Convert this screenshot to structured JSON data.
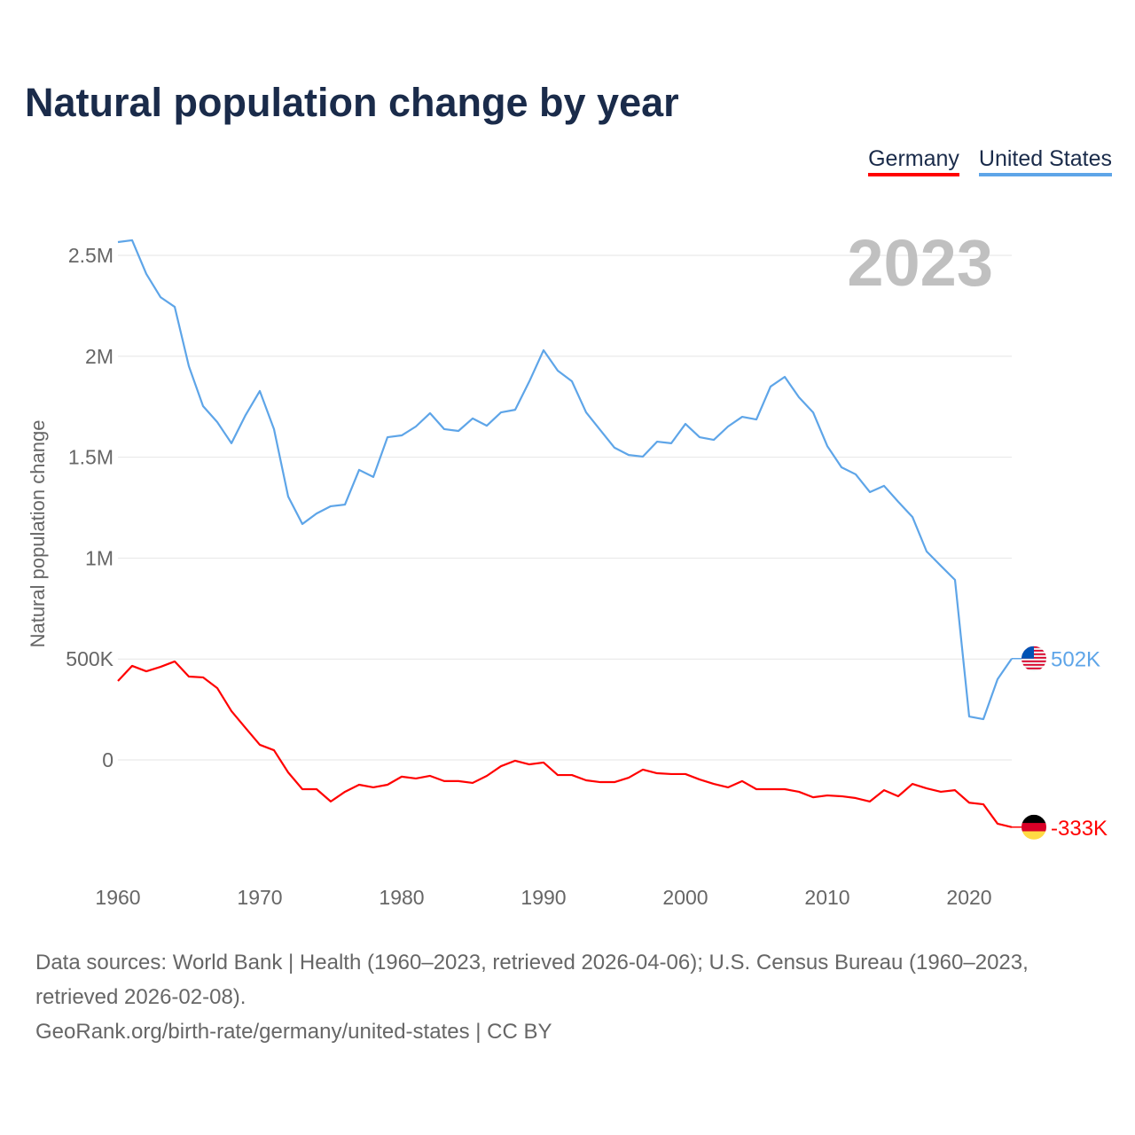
{
  "title": "Natural population change by year",
  "legend": {
    "germany": "Germany",
    "us": "United States"
  },
  "year_watermark": "2023",
  "footer": {
    "sources": "Data sources: World Bank | Health (1960–2023, retrieved 2026-04-06); U.S. Census Bureau (1960–2023, retrieved 2026-02-08).",
    "link": "GeoRank.org/birth-rate/germany/united-states | CC BY"
  },
  "chart_data": {
    "type": "line",
    "title": "Natural population change by year",
    "xlabel": "",
    "ylabel": "Natural population change",
    "xlim": [
      1960,
      2023
    ],
    "ylim": [
      -0.5,
      2.6
    ],
    "y_unit": "millions",
    "y_ticks": [
      {
        "v": 0,
        "label": "0"
      },
      {
        "v": 0.5,
        "label": "500K"
      },
      {
        "v": 1,
        "label": "1M"
      },
      {
        "v": 1.5,
        "label": "1.5M"
      },
      {
        "v": 2,
        "label": "2M"
      },
      {
        "v": 2.5,
        "label": "2.5M"
      }
    ],
    "x_ticks": [
      {
        "v": 1960,
        "label": "1960"
      },
      {
        "v": 1970,
        "label": "1970"
      },
      {
        "v": 1980,
        "label": "1980"
      },
      {
        "v": 1990,
        "label": "1990"
      },
      {
        "v": 2000,
        "label": "2000"
      },
      {
        "v": 2010,
        "label": "2010"
      },
      {
        "v": 2020,
        "label": "2020"
      }
    ],
    "grid": true,
    "legend_position": "top-right",
    "x_start": 1960,
    "series": [
      {
        "name": "United States",
        "color": "#5ea5e8",
        "flag": "us-flag-icon",
        "end_label": "502K",
        "values": [
          2.566,
          2.575,
          2.408,
          2.293,
          2.245,
          1.951,
          1.753,
          1.674,
          1.569,
          1.709,
          1.828,
          1.639,
          1.305,
          1.169,
          1.221,
          1.257,
          1.265,
          1.437,
          1.402,
          1.599,
          1.608,
          1.652,
          1.718,
          1.639,
          1.63,
          1.692,
          1.656,
          1.722,
          1.735,
          1.876,
          2.03,
          1.929,
          1.876,
          1.722,
          1.634,
          1.547,
          1.511,
          1.503,
          1.577,
          1.569,
          1.665,
          1.599,
          1.586,
          1.652,
          1.7,
          1.687,
          1.85,
          1.898,
          1.797,
          1.722,
          1.555,
          1.45,
          1.415,
          1.327,
          1.358,
          1.279,
          1.204,
          1.033,
          0.962,
          0.892,
          0.215,
          0.202,
          0.4,
          0.502
        ]
      },
      {
        "name": "Germany",
        "color": "#ff0000",
        "flag": "germany-flag-icon",
        "end_label": "-333K",
        "values": [
          0.391,
          0.466,
          0.439,
          0.461,
          0.488,
          0.413,
          0.409,
          0.356,
          0.242,
          0.158,
          0.075,
          0.048,
          -0.062,
          -0.145,
          -0.145,
          -0.206,
          -0.158,
          -0.123,
          -0.136,
          -0.123,
          -0.083,
          -0.092,
          -0.079,
          -0.105,
          -0.105,
          -0.114,
          -0.079,
          -0.031,
          -0.004,
          -0.022,
          -0.013,
          -0.075,
          -0.075,
          -0.101,
          -0.11,
          -0.11,
          -0.088,
          -0.048,
          -0.066,
          -0.07,
          -0.07,
          -0.097,
          -0.119,
          -0.136,
          -0.105,
          -0.145,
          -0.145,
          -0.145,
          -0.158,
          -0.185,
          -0.176,
          -0.18,
          -0.189,
          -0.206,
          -0.15,
          -0.18,
          -0.119,
          -0.141,
          -0.158,
          -0.15,
          -0.212,
          -0.22,
          -0.316,
          -0.333
        ]
      }
    ]
  }
}
